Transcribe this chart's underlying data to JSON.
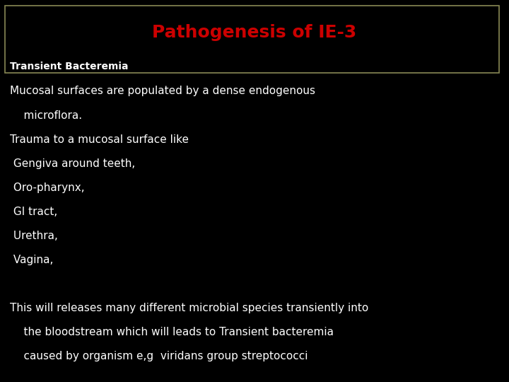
{
  "background_color": "#000000",
  "title": "Pathogenesis of IE-3",
  "title_color": "#cc0000",
  "title_fontsize": 18,
  "title_fontweight": "bold",
  "subtitle": "Transient Bacteremia",
  "subtitle_color": "#ffffff",
  "subtitle_fontsize": 10,
  "subtitle_fontweight": "bold",
  "border_color": "#888855",
  "text_color": "#ffffff",
  "body_lines": [
    "Mucosal surfaces are populated by a dense endogenous",
    "    microflora.",
    "Trauma to a mucosal surface like",
    " Gengiva around teeth,",
    " Oro-pharynx,",
    " GI tract,",
    " Urethra,",
    " Vagina,",
    "",
    "This will releases many different microbial species transiently into",
    "    the bloodstream which will leads to Transient bacteremia",
    "    caused by organism e,g  viridans group streptococci"
  ],
  "body_fontsize": 11,
  "figsize": [
    7.2,
    5.4
  ],
  "dpi": 100
}
